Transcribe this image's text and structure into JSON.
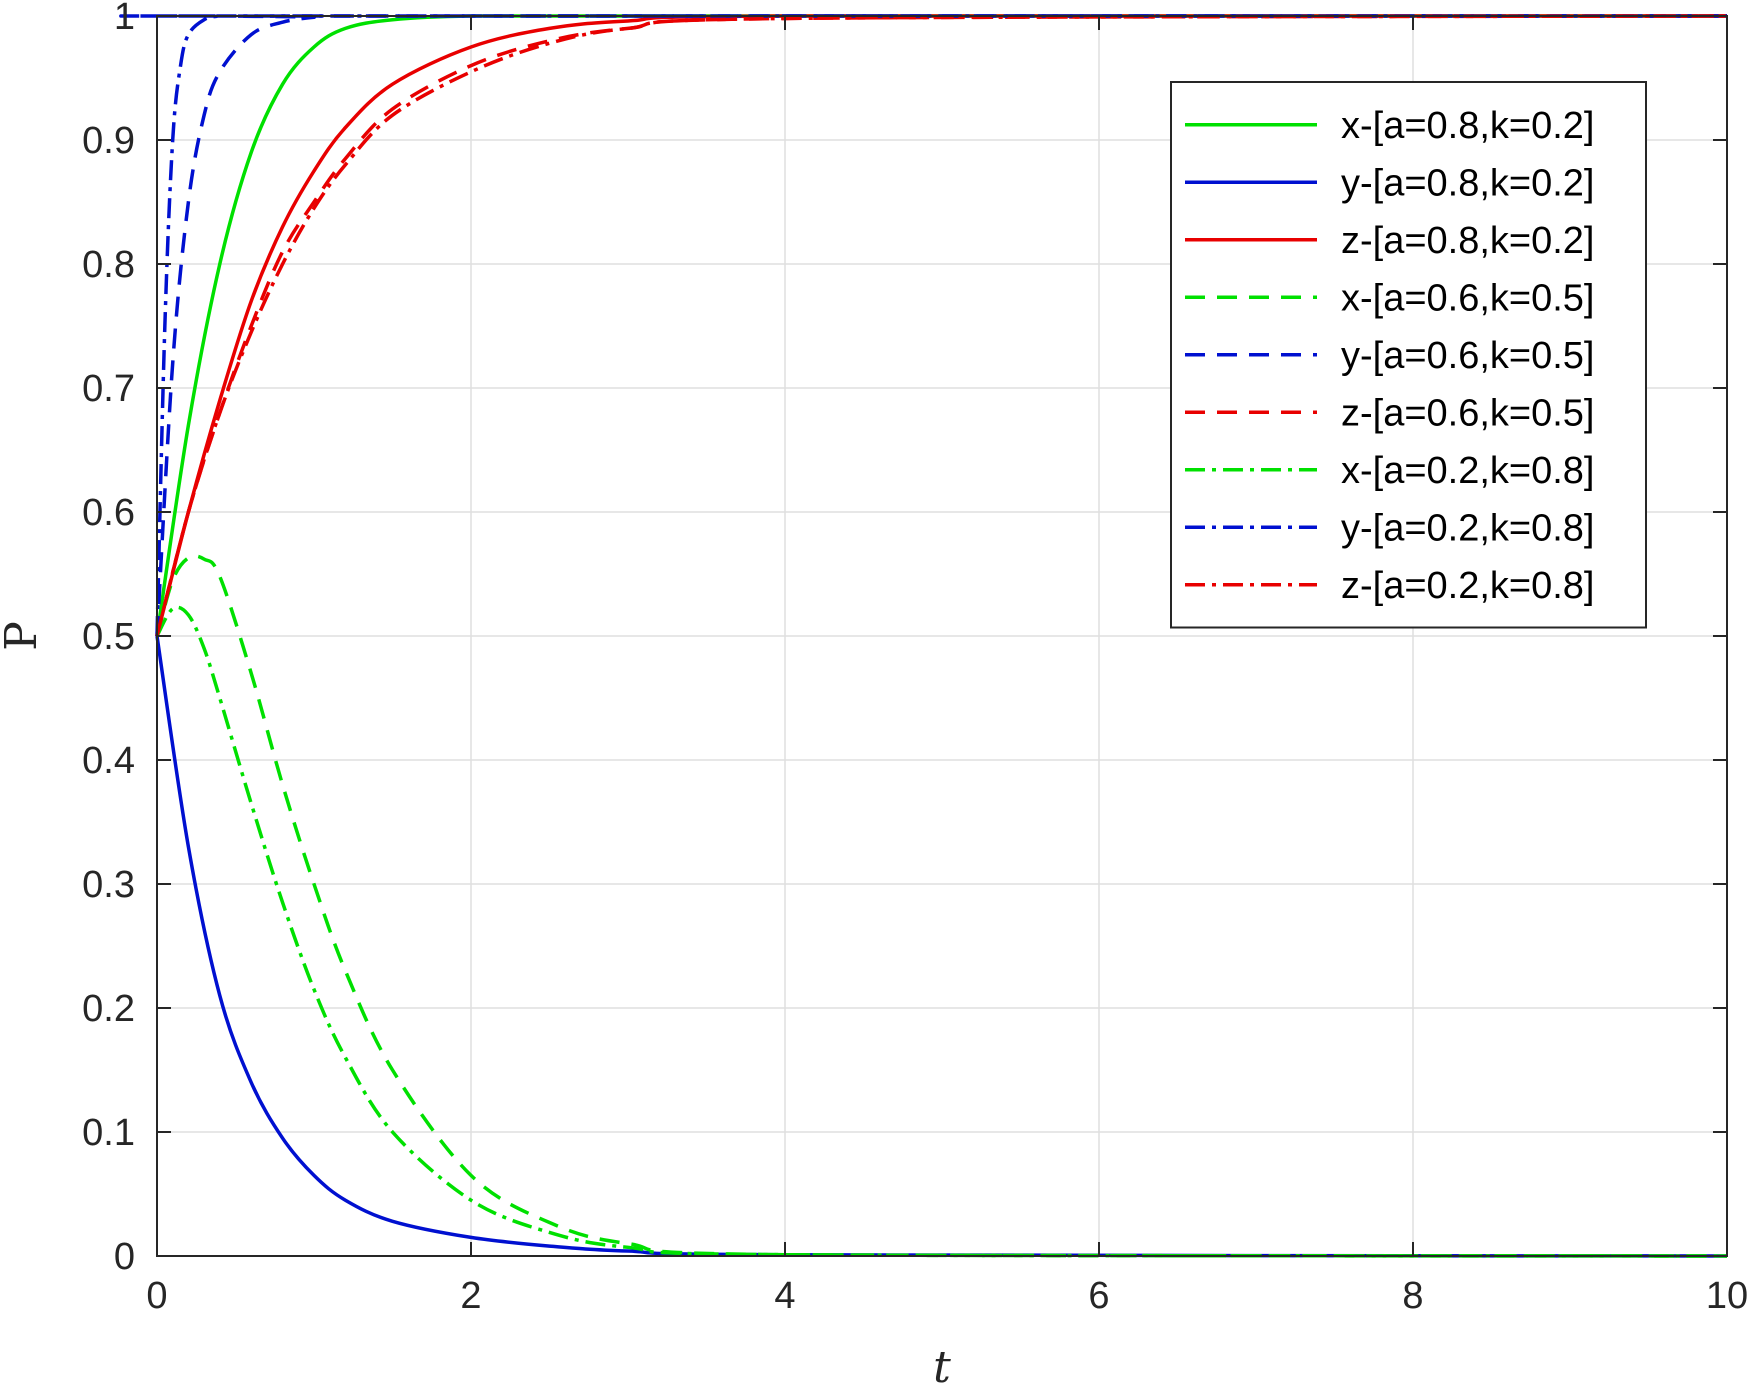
{
  "chart_data": {
    "type": "line",
    "title": "",
    "xlabel": "t",
    "ylabel": "P",
    "xlim": [
      0,
      10
    ],
    "ylim": [
      0,
      1
    ],
    "xticks": [
      0,
      2,
      4,
      6,
      8,
      10
    ],
    "yticks": [
      0,
      0.1,
      0.2,
      0.3,
      0.4,
      0.5,
      0.6,
      0.7,
      0.8,
      0.9,
      1
    ],
    "grid": true,
    "legend_position": "top-right",
    "series": [
      {
        "name": "x-[a=0.8,k=0.2]",
        "color": "#00e000",
        "dash": "solid",
        "x": [
          0,
          0.2,
          0.4,
          0.6,
          0.8,
          1.0,
          1.2,
          1.5,
          2.0,
          3.0,
          10
        ],
        "y": [
          0.5,
          0.67,
          0.8,
          0.89,
          0.945,
          0.975,
          0.99,
          0.997,
          1.0,
          1.0,
          1.0
        ]
      },
      {
        "name": "y-[a=0.8,k=0.2]",
        "color": "#0010d0",
        "dash": "solid",
        "x": [
          0,
          0.2,
          0.4,
          0.6,
          0.8,
          1.0,
          1.2,
          1.5,
          2.0,
          2.5,
          3.0,
          4.0,
          10
        ],
        "y": [
          0.5,
          0.33,
          0.21,
          0.14,
          0.095,
          0.065,
          0.045,
          0.028,
          0.015,
          0.008,
          0.004,
          0.001,
          0.0
        ]
      },
      {
        "name": "z-[a=0.8,k=0.2]",
        "color": "#e80000",
        "dash": "solid",
        "x": [
          0,
          0.2,
          0.4,
          0.6,
          0.8,
          1.0,
          1.2,
          1.5,
          2.0,
          2.5,
          3.0,
          4.0,
          10
        ],
        "y": [
          0.5,
          0.6,
          0.69,
          0.77,
          0.83,
          0.875,
          0.91,
          0.945,
          0.975,
          0.99,
          0.996,
          1.0,
          1.0
        ]
      },
      {
        "name": "x-[a=0.6,k=0.5]",
        "color": "#00e000",
        "dash": "dashed",
        "x": [
          0,
          0.1,
          0.2,
          0.3,
          0.4,
          0.6,
          0.8,
          1.0,
          1.2,
          1.5,
          2.0,
          2.5,
          3.0,
          4.0,
          10
        ],
        "y": [
          0.5,
          0.545,
          0.563,
          0.562,
          0.548,
          0.47,
          0.38,
          0.3,
          0.23,
          0.15,
          0.065,
          0.027,
          0.01,
          0.001,
          0.0
        ]
      },
      {
        "name": "y-[a=0.6,k=0.5]",
        "color": "#0010d0",
        "dash": "dashed",
        "x": [
          0,
          0.1,
          0.2,
          0.3,
          0.4,
          0.6,
          0.8,
          1.0,
          1.2,
          10
        ],
        "y": [
          0.5,
          0.72,
          0.85,
          0.92,
          0.955,
          0.985,
          0.995,
          0.999,
          1.0,
          1.0
        ]
      },
      {
        "name": "z-[a=0.6,k=0.5]",
        "color": "#e80000",
        "dash": "dashed",
        "x": [
          0,
          0.2,
          0.4,
          0.6,
          0.8,
          1.0,
          1.2,
          1.5,
          2.0,
          2.5,
          3.0,
          4.0,
          10
        ],
        "y": [
          0.5,
          0.6,
          0.68,
          0.75,
          0.81,
          0.85,
          0.885,
          0.925,
          0.96,
          0.98,
          0.99,
          0.998,
          1.0
        ]
      },
      {
        "name": "x-[a=0.2,k=0.8]",
        "color": "#00e000",
        "dash": "dashdot",
        "x": [
          0,
          0.1,
          0.2,
          0.3,
          0.4,
          0.6,
          0.8,
          1.0,
          1.2,
          1.5,
          2.0,
          2.5,
          3.0,
          4.0,
          10
        ],
        "y": [
          0.5,
          0.522,
          0.517,
          0.49,
          0.45,
          0.365,
          0.285,
          0.215,
          0.16,
          0.1,
          0.045,
          0.019,
          0.007,
          0.001,
          0.0
        ]
      },
      {
        "name": "y-[a=0.2,k=0.8]",
        "color": "#0010d0",
        "dash": "dashdot",
        "x": [
          0,
          0.05,
          0.1,
          0.15,
          0.2,
          0.3,
          0.4,
          0.5,
          10
        ],
        "y": [
          0.5,
          0.75,
          0.9,
          0.96,
          0.985,
          0.997,
          1.0,
          1.0,
          1.0
        ]
      },
      {
        "name": "z-[a=0.2,k=0.8]",
        "color": "#e80000",
        "dash": "dashdot",
        "x": [
          0,
          0.2,
          0.4,
          0.6,
          0.8,
          1.0,
          1.2,
          1.5,
          2.0,
          2.5,
          3.0,
          4.0,
          10
        ],
        "y": [
          0.5,
          0.6,
          0.68,
          0.745,
          0.8,
          0.845,
          0.88,
          0.92,
          0.955,
          0.978,
          0.99,
          0.998,
          1.0
        ]
      }
    ]
  }
}
